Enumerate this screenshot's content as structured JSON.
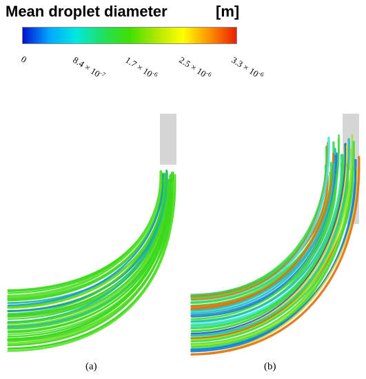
{
  "legend": {
    "title": "Mean droplet diameter",
    "unit": "[m]",
    "ticks": [
      {
        "base": "0",
        "exp": ""
      },
      {
        "base": "8.4 × 10",
        "exp": "-7"
      },
      {
        "base": "1.7 × 10",
        "exp": "-6"
      },
      {
        "base": "2.5 × 10",
        "exp": "-6"
      },
      {
        "base": "3.3 × 10",
        "exp": "-6"
      }
    ],
    "colors": [
      "#0010d0",
      "#00a8ff",
      "#00e8e0",
      "#20e060",
      "#40e000",
      "#b0e800",
      "#ffff00",
      "#ff9000",
      "#e82000"
    ]
  },
  "panels": [
    {
      "caption": "(a)",
      "dominant_color": "#40d820",
      "gray_zone": "top"
    },
    {
      "caption": "(b)",
      "dominant_color": "#40d840",
      "gray_zone": "top-split"
    }
  ]
}
